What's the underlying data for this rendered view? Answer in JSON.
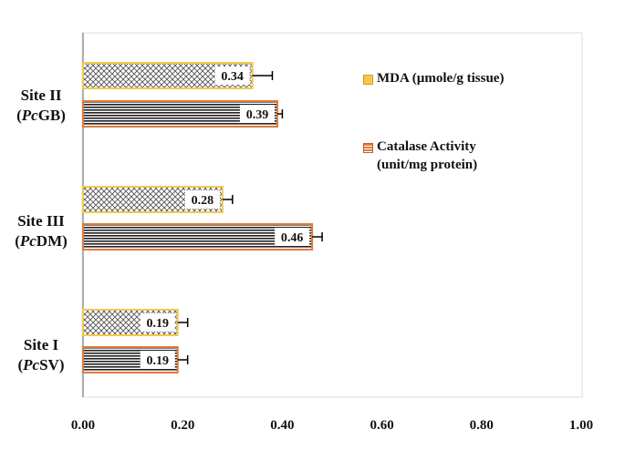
{
  "chart_data": {
    "type": "bar",
    "orientation": "horizontal",
    "title": "",
    "xlabel": "",
    "ylabel": "",
    "xlim": [
      0,
      1
    ],
    "x_ticks": [
      "0.00",
      "0.20",
      "0.40",
      "0.60",
      "0.80",
      "1.00"
    ],
    "categories": [
      {
        "name": "Site II",
        "prefix": "Pc",
        "suffix": "GB"
      },
      {
        "name": "Site III",
        "prefix": "Pc",
        "suffix": "DM"
      },
      {
        "name": "Site I",
        "prefix": "Pc",
        "suffix": "SV"
      }
    ],
    "series": [
      {
        "name": "MDA (µmole/g tissue)",
        "values": [
          0.34,
          0.28,
          0.19
        ],
        "labels": [
          "0.34",
          "0.28",
          "0.19"
        ],
        "errors": [
          0.04,
          0.02,
          0.02
        ],
        "color": "#f2c94c",
        "pattern": "crosshatch"
      },
      {
        "name": "Catalase Activity (unit/mg protein)",
        "name_line1": "Catalase Activity",
        "name_line2": "(unit/mg protein)",
        "values": [
          0.39,
          0.46,
          0.19
        ],
        "labels": [
          "0.39",
          "0.46",
          "0.19"
        ],
        "errors": [
          0.01,
          0.02,
          0.02
        ],
        "color": "#e07b39",
        "pattern": "horizontal-stripes"
      }
    ],
    "grid": false,
    "legend_position": "right"
  }
}
